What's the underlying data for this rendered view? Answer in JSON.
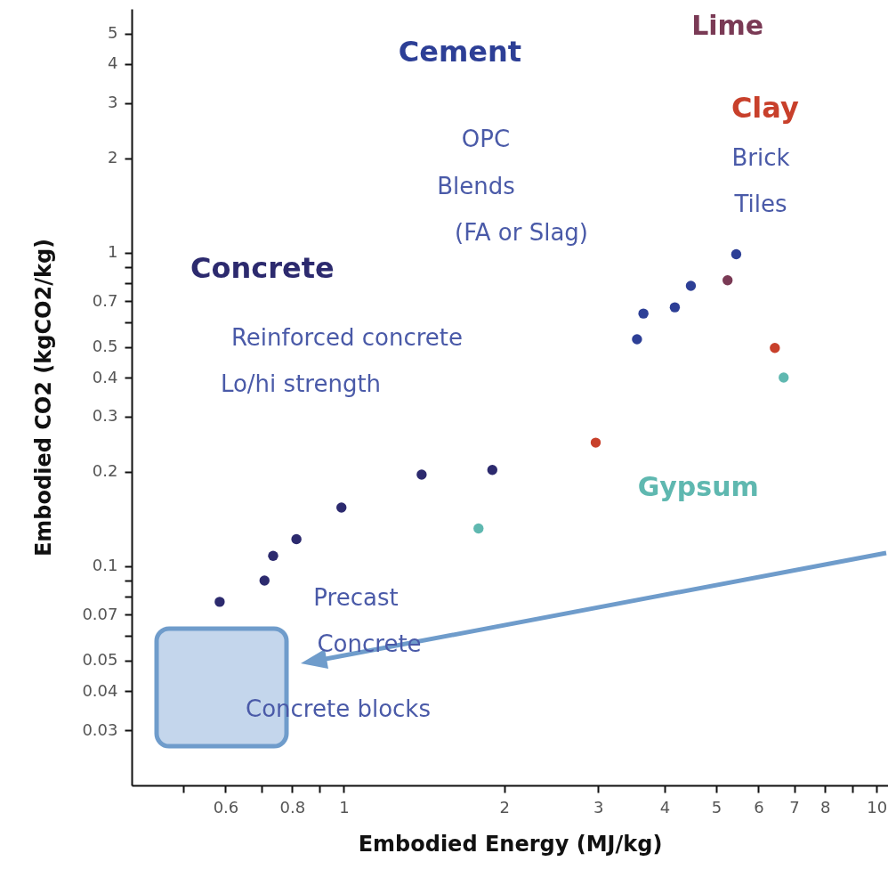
{
  "chart_data": {
    "type": "scatter",
    "xlabel": "Embodied Energy (MJ/kg)",
    "ylabel": "Embodied CO2 (kgCO2/kg)",
    "log": "xy",
    "grid": false,
    "marker": "circle",
    "xlim": [
      0.4,
      10.5
    ],
    "ylim": [
      0.02,
      6
    ],
    "xticks": [
      {
        "value": 0.5,
        "label": null
      },
      0.6,
      {
        "value": 0.7,
        "label": null
      },
      0.8,
      {
        "value": 0.9,
        "label": null
      },
      1,
      2,
      3,
      4,
      5,
      6,
      7,
      8,
      {
        "value": 9,
        "label": null
      },
      10
    ],
    "yticks": [
      0.03,
      0.04,
      0.05,
      {
        "value": 0.06,
        "label": null
      },
      0.07,
      {
        "value": 0.08,
        "label": null
      },
      {
        "value": 0.09,
        "label": null
      },
      0.1,
      0.2,
      0.3,
      0.4,
      0.5,
      {
        "value": 0.6,
        "label": null
      },
      0.7,
      {
        "value": 0.8,
        "label": null
      },
      {
        "value": 0.9,
        "label": null
      },
      1,
      2,
      3,
      4,
      5
    ],
    "series": [
      {
        "name": "Concrete",
        "color": "#2c2a6e",
        "x": [
          0.585,
          0.71,
          0.737,
          0.815,
          0.99,
          1.4,
          1.9
        ],
        "values": [
          0.077,
          0.09,
          0.108,
          0.122,
          0.154,
          0.196,
          0.203
        ]
      },
      {
        "name": "Cement",
        "color": "#2d3f96",
        "x": [
          3.55,
          3.65,
          4.18,
          4.48,
          5.45
        ],
        "values": [
          0.53,
          0.64,
          0.67,
          0.785,
          0.99
        ]
      },
      {
        "name": "Lime",
        "color": "#7a3a55",
        "x": [
          5.25
        ],
        "values": [
          0.817
        ]
      },
      {
        "name": "Clay",
        "color": "#c8402b",
        "x": [
          6.44,
          2.97
        ],
        "values": [
          0.497,
          0.248
        ]
      },
      {
        "name": "Gypsum",
        "color": "#5fb8b0",
        "x": [
          6.69,
          1.79
        ],
        "values": [
          0.4,
          0.132
        ]
      }
    ],
    "annotations": [
      "OPC",
      "Blends",
      "(FA or Slag)",
      "Brick",
      "Tiles",
      "Reinforced concrete",
      "Lo/hi strength",
      "Precast",
      "Concrete",
      "Concrete blocks"
    ]
  }
}
